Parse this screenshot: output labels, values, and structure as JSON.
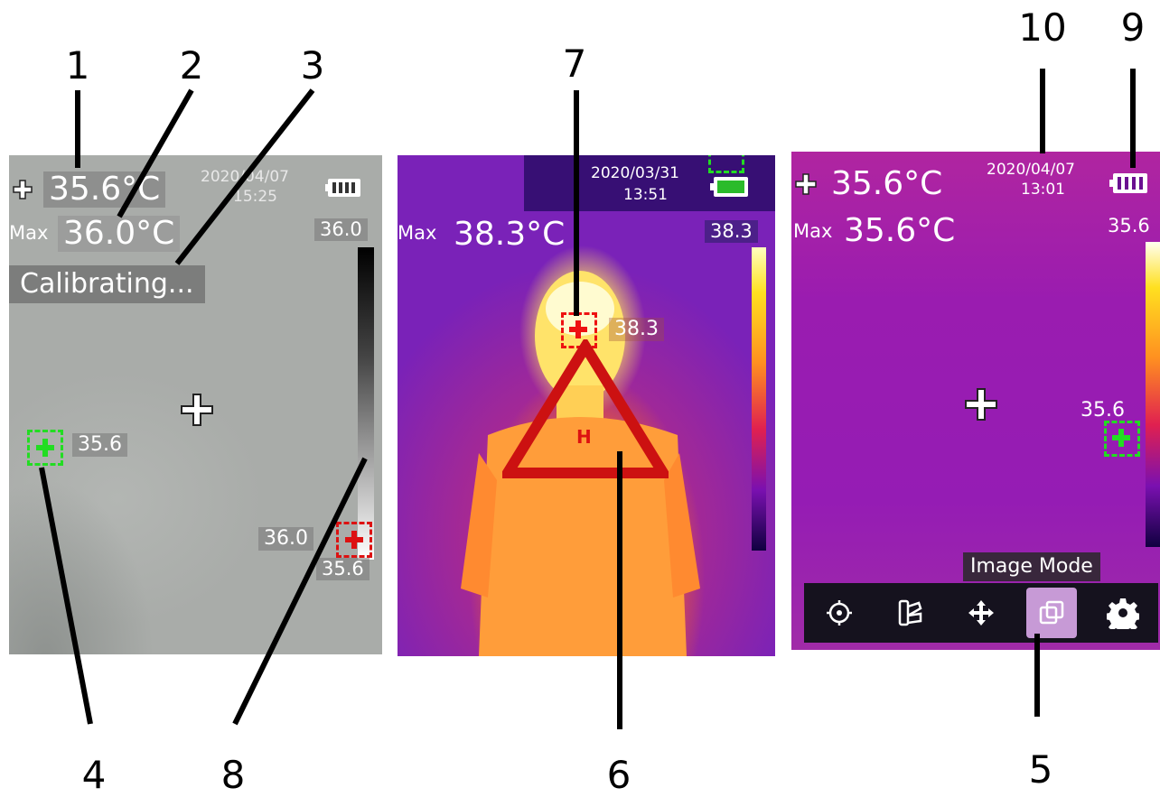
{
  "callouts": [
    "1",
    "2",
    "3",
    "4",
    "5",
    "6",
    "7",
    "8",
    "9",
    "10"
  ],
  "screen1": {
    "center_temp": "35.6°C",
    "max_label": "Max",
    "max_temp": "36.0°C",
    "date": "2020/04/07",
    "time": "15:25",
    "status": "Calibrating...",
    "scale_top": "36.0",
    "scale_bottom": "35.6",
    "spot_temp": "35.6",
    "hot_temp": "36.0",
    "colors": {
      "palette_top": "#000000",
      "palette_bottom": "#ffffff",
      "spot": "#22dd22",
      "hot": "#dd1111"
    }
  },
  "screen2": {
    "max_label": "Max",
    "max_temp": "38.3°C",
    "date": "2020/03/31",
    "time": "13:51",
    "scale_top": "38.3",
    "hot_temp": "38.3",
    "alarm_letter": "H",
    "colors": {
      "alarm": "#cc1111"
    }
  },
  "screen3": {
    "center_temp": "35.6°C",
    "max_label": "Max",
    "max_temp": "35.6°C",
    "date": "2020/04/07",
    "time": "13:01",
    "scale_top": "35.6",
    "spot_temp": "35.6",
    "tooltip": "Image Mode",
    "menu_icons": [
      "target-icon",
      "palette-icon",
      "move-icon",
      "image-mode-icon",
      "gear-icon"
    ],
    "active_menu": "image-mode-icon"
  }
}
